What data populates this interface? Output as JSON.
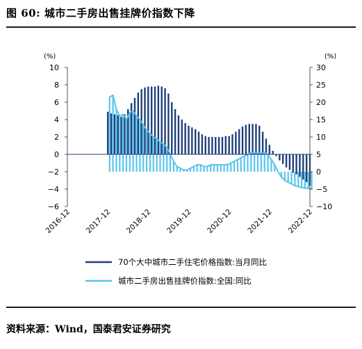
{
  "figure": {
    "title": "图 60: 城市二手房出售挂牌价指数下降",
    "source": "资料来源：Wind，国泰君安证券研究"
  },
  "chart_data": {
    "type": "bar+line",
    "left_axis": {
      "unit": "(%)",
      "ylim": [
        -6,
        10
      ],
      "ticks": [
        "10",
        "8",
        "6",
        "4",
        "2",
        "0",
        "−2",
        "−4",
        "−6"
      ]
    },
    "right_axis": {
      "unit": "(%)",
      "ylim": [
        -10,
        30
      ],
      "ticks": [
        "30",
        "25",
        "20",
        "15",
        "10",
        "5",
        "0",
        "−5",
        "−10"
      ]
    },
    "x_ticks": [
      "2016-12",
      "2017-12",
      "2018-12",
      "2019-12",
      "2020-12",
      "2021-12",
      "2022-12"
    ],
    "colors": {
      "bars": "#1f3f7a",
      "line": "#5bc4ec",
      "fills": "#5bc4ec"
    },
    "series": [
      {
        "name": "70个大中城市二手住宅价格指数:当月同比",
        "axis": "left",
        "style": "bar",
        "x": [
          "2017-12",
          "2018-01",
          "2018-02",
          "2018-03",
          "2018-04",
          "2018-05",
          "2018-06",
          "2018-07",
          "2018-08",
          "2018-09",
          "2018-10",
          "2018-11",
          "2018-12",
          "2019-01",
          "2019-02",
          "2019-03",
          "2019-04",
          "2019-05",
          "2019-06",
          "2019-07",
          "2019-08",
          "2019-09",
          "2019-10",
          "2019-11",
          "2019-12",
          "2020-01",
          "2020-02",
          "2020-03",
          "2020-04",
          "2020-05",
          "2020-06",
          "2020-07",
          "2020-08",
          "2020-09",
          "2020-10",
          "2020-11",
          "2020-12",
          "2021-01",
          "2021-02",
          "2021-03",
          "2021-04",
          "2021-05",
          "2021-06",
          "2021-07",
          "2021-08",
          "2021-09",
          "2021-10",
          "2021-11",
          "2021-12",
          "2022-01",
          "2022-02",
          "2022-03",
          "2022-04",
          "2022-05",
          "2022-06",
          "2022-07",
          "2022-08",
          "2022-09",
          "2022-10",
          "2022-11",
          "2022-12"
        ],
        "values": [
          4.9,
          4.7,
          4.6,
          4.5,
          4.3,
          4.6,
          5.2,
          5.9,
          6.5,
          7.1,
          7.5,
          7.7,
          7.8,
          7.8,
          7.8,
          7.9,
          7.8,
          7.6,
          7.0,
          6.0,
          5.2,
          4.5,
          4.0,
          3.6,
          3.3,
          3.1,
          2.9,
          2.6,
          2.3,
          2.1,
          2.0,
          2.0,
          2.0,
          2.0,
          2.0,
          2.1,
          2.1,
          2.3,
          2.6,
          2.9,
          3.2,
          3.4,
          3.5,
          3.5,
          3.5,
          3.3,
          2.6,
          1.8,
          1.1,
          0.4,
          -0.2,
          -0.7,
          -1.1,
          -1.5,
          -1.8,
          -2.1,
          -2.3,
          -2.6,
          -2.9,
          -3.2,
          -3.6
        ]
      },
      {
        "name": "城市二手房出售挂牌价指数:全国:同比",
        "axis": "right",
        "style": "line-with-fill",
        "x": [
          "2017-12",
          "2018-01",
          "2018-02",
          "2018-03",
          "2018-04",
          "2018-05",
          "2018-06",
          "2018-07",
          "2018-08",
          "2018-09",
          "2018-10",
          "2018-11",
          "2018-12",
          "2019-01",
          "2019-02",
          "2019-03",
          "2019-04",
          "2019-05",
          "2019-06",
          "2019-07",
          "2019-08",
          "2019-09",
          "2019-10",
          "2019-11",
          "2019-12",
          "2020-01",
          "2020-02",
          "2020-03",
          "2020-04",
          "2020-05",
          "2020-06",
          "2020-07",
          "2020-08",
          "2020-09",
          "2020-10",
          "2020-11",
          "2020-12",
          "2021-01",
          "2021-02",
          "2021-03",
          "2021-04",
          "2021-05",
          "2021-06",
          "2021-07",
          "2021-08",
          "2021-09",
          "2021-10",
          "2021-11",
          "2021-12",
          "2022-01",
          "2022-02",
          "2022-03",
          "2022-04",
          "2022-05",
          "2022-06",
          "2022-07",
          "2022-08",
          "2022-09",
          "2022-10",
          "2022-11",
          "2022-12"
        ],
        "values": [
          21.5,
          22.0,
          18.0,
          16.0,
          16.5,
          15.0,
          17.0,
          17.5,
          16.0,
          15.0,
          13.5,
          12.0,
          11.0,
          10.0,
          9.5,
          8.5,
          8.0,
          7.0,
          5.0,
          3.0,
          1.5,
          1.0,
          0.5,
          0.5,
          1.0,
          1.5,
          2.0,
          2.0,
          1.5,
          1.5,
          2.0,
          2.0,
          2.0,
          2.0,
          2.0,
          2.0,
          2.5,
          3.0,
          3.5,
          4.0,
          4.5,
          5.0,
          5.5,
          5.5,
          5.5,
          5.5,
          5.5,
          5.0,
          3.5,
          2.0,
          0.0,
          -1.5,
          -2.5,
          -3.0,
          -3.5,
          -4.0,
          -4.3,
          -4.5,
          -4.7,
          -4.8,
          -5.0
        ]
      }
    ],
    "legend_position": "bottom-center"
  }
}
